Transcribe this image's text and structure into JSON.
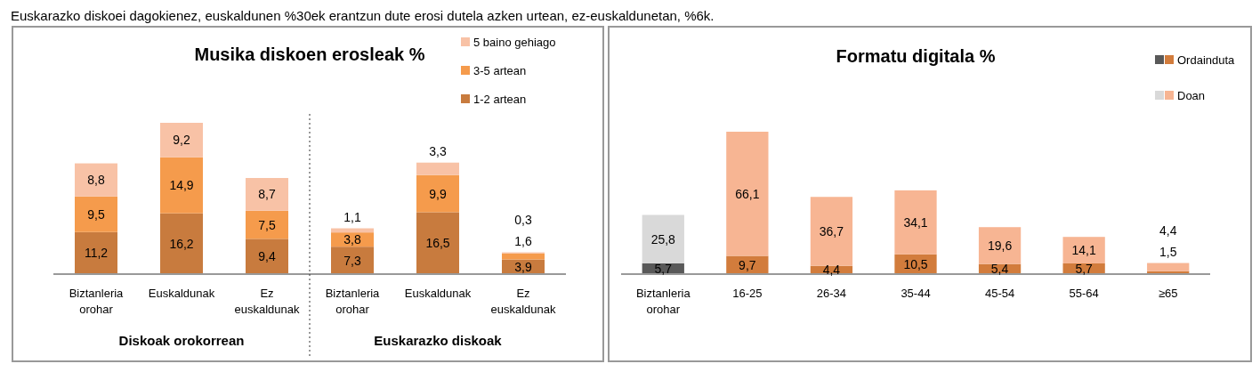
{
  "chart_data": [
    {
      "type": "bar",
      "stacked": true,
      "legend": "top right",
      "title": "Musika diskoen erosleak %",
      "annotations": [
        "Euskarazko diskoei dagokienez, euskaldunen %30ek erantzun dute erosi dutela azken urtean, ez-euskaldunetan, %6k.",
        "Diskoak orokorrean",
        "Euskarazko diskoak"
      ],
      "categories": [
        "Biztanleria orohar",
        "Euskaldunak",
        "Ez euskaldunak",
        "Biztanleria orohar",
        "Euskaldunak",
        "Ez euskaldunak"
      ],
      "series": [
        {
          "name": "1-2 artean",
          "color": "#c87b3e",
          "values": [
            11.2,
            16.2,
            9.4,
            7.3,
            16.5,
            3.9
          ],
          "value_labels": [
            "11,2",
            "16,2",
            "9,4",
            "7,3",
            "16,5",
            "3,9"
          ]
        },
        {
          "name": "3-5 artean",
          "color": "#f59b4c",
          "values": [
            9.5,
            14.9,
            7.5,
            3.8,
            9.9,
            1.6
          ],
          "value_labels": [
            "9,5",
            "14,9",
            "7,5",
            "3,8",
            "9,9",
            "1,6"
          ]
        },
        {
          "name": "5 baino gehiago",
          "color": "#f8c2a6",
          "values": [
            8.8,
            9.2,
            8.7,
            1.1,
            3.3,
            0.3
          ],
          "value_labels": [
            "8,8",
            "9,2",
            "8,7",
            "1,1",
            "3,3",
            "0,3"
          ]
        }
      ]
    },
    {
      "type": "bar",
      "stacked": true,
      "legend": "top right",
      "title": "Formatu digitala %",
      "categories": [
        "Biztanleria orohar",
        "16-25",
        "26-34",
        "35-44",
        "45-54",
        "55-64",
        "≥65"
      ],
      "series": [
        {
          "name": "Ordainduta",
          "color": "#d27c3c",
          "colors": [
            "#595959",
            "#d27c3c",
            "#d27c3c",
            "#d27c3c",
            "#d27c3c",
            "#d27c3c",
            "#d27c3c"
          ],
          "values": [
            5.7,
            9.7,
            4.4,
            10.5,
            5.4,
            5.7,
            1.5
          ],
          "value_labels": [
            "5,7",
            "9,7",
            "4,4",
            "10,5",
            "5,4",
            "5,7",
            "1,5"
          ]
        },
        {
          "name": "Doan",
          "color": "#f7b593",
          "colors": [
            "#d9d9d9",
            "#f7b593",
            "#f7b593",
            "#f7b593",
            "#f7b593",
            "#f7b593",
            "#f7b593"
          ],
          "values": [
            25.8,
            66.1,
            36.7,
            34.1,
            19.6,
            14.1,
            4.4
          ],
          "value_labels": [
            "25,8",
            "66,1",
            "36,7",
            "34,1",
            "19,6",
            "14,1",
            "4,4"
          ]
        }
      ]
    }
  ]
}
